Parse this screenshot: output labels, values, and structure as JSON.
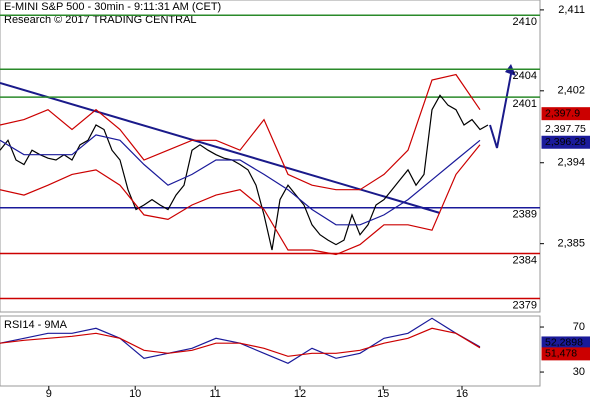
{
  "chart_data": {
    "type": "line",
    "title": "E-MINI S&P 500 - 30min - 9:11:31 AM (CET)",
    "subtitle": "Research © 2017 TRADING CENTRAL",
    "xlim": [
      0,
      67.5
    ],
    "xticks": [
      {
        "value": 6.1,
        "label": "9"
      },
      {
        "value": 16.9,
        "label": "10"
      },
      {
        "value": 26.9,
        "label": "11"
      },
      {
        "value": 37.5,
        "label": "12"
      },
      {
        "value": 47.9,
        "label": "15"
      },
      {
        "value": 57.75,
        "label": "16"
      }
    ],
    "ylim": [
      2377.4,
      2412.1
    ],
    "yticks": [
      {
        "value": 2385,
        "label": "2,385"
      },
      {
        "value": 2394,
        "label": "2,394"
      },
      {
        "value": 2402,
        "label": "2,402"
      },
      {
        "value": 2411,
        "label": "2,411"
      }
    ],
    "series": [
      {
        "color": "#000000",
        "x": [
          0,
          1,
          2,
          3,
          4,
          5,
          6,
          7,
          8,
          9,
          10,
          11,
          12,
          13,
          14,
          15,
          16,
          17,
          18,
          19,
          20,
          21,
          22,
          23,
          24,
          25,
          26,
          27,
          28,
          29,
          30,
          31,
          32,
          33,
          34,
          35,
          36,
          37,
          38,
          39,
          40,
          41,
          42,
          43,
          44,
          45,
          46,
          47,
          48,
          49,
          50,
          51,
          52,
          53,
          54,
          55,
          56,
          57,
          58,
          59,
          60,
          61
        ],
        "values": [
          2395.4,
          2396.5,
          2394.3,
          2393.8,
          2395.4,
          2394.9,
          2394.5,
          2394.3,
          2394.9,
          2394.3,
          2396.0,
          2396.5,
          2398.2,
          2397.7,
          2395.4,
          2394.3,
          2391.0,
          2388.8,
          2389.3,
          2389.9,
          2389.3,
          2388.8,
          2390.4,
          2391.5,
          2395.4,
          2396.0,
          2395.4,
          2394.9,
          2394.5,
          2394.3,
          2393.8,
          2393.2,
          2391.5,
          2388.2,
          2384.3,
          2389.9,
          2391.5,
          2390.4,
          2389.3,
          2387.1,
          2386.0,
          2385.4,
          2384.9,
          2385.4,
          2388.2,
          2386.0,
          2387.1,
          2389.3,
          2389.9,
          2391.0,
          2392.1,
          2393.2,
          2391.5,
          2392.7,
          2399.9,
          2401.5,
          2400.4,
          2399.9,
          2398.2,
          2398.8,
          2397.7,
          2398.2
        ]
      },
      {
        "color": "#cc0000",
        "x": [
          0,
          3,
          6,
          9,
          12,
          15,
          18,
          21,
          24,
          27,
          30,
          33,
          36,
          39,
          42,
          45,
          48,
          51,
          54,
          57,
          60
        ],
        "values": [
          2398.2,
          2398.8,
          2399.9,
          2397.7,
          2399.9,
          2397.7,
          2394.3,
          2395.4,
          2396.5,
          2396.5,
          2395.4,
          2398.8,
          2392.7,
          2391.5,
          2391.0,
          2391.0,
          2392.7,
          2395.4,
          2403.2,
          2403.8,
          2399.9
        ]
      },
      {
        "color": "#cc0000",
        "x": [
          0,
          3,
          6,
          9,
          12,
          15,
          18,
          21,
          24,
          27,
          30,
          33,
          36,
          39,
          42,
          45,
          48,
          51,
          54,
          57,
          60
        ],
        "values": [
          2391.0,
          2390.4,
          2391.5,
          2392.7,
          2393.2,
          2391.5,
          2388.2,
          2387.7,
          2389.3,
          2390.4,
          2391.0,
          2388.8,
          2384.3,
          2384.3,
          2383.8,
          2384.9,
          2387.1,
          2387.1,
          2386.5,
          2392.7,
          2396.0
        ]
      },
      {
        "color": "#1a1a9a",
        "x": [
          0,
          3,
          6,
          9,
          12,
          15,
          18,
          21,
          24,
          27,
          30,
          33,
          36,
          39,
          42,
          45,
          48,
          51,
          54,
          57,
          60
        ],
        "values": [
          2396.5,
          2394.9,
          2394.9,
          2394.9,
          2397.1,
          2396.5,
          2393.8,
          2391.5,
          2392.7,
          2394.3,
          2394.3,
          2392.7,
          2391.0,
          2388.8,
          2387.1,
          2387.1,
          2388.2,
          2389.9,
          2392.1,
          2394.3,
          2396.5
        ]
      }
    ],
    "levels": [
      {
        "value": 2410.4,
        "label": "2410",
        "color": "#2a8a2a"
      },
      {
        "value": 2404.4,
        "label": "2404",
        "color": "#2a8a2a"
      },
      {
        "value": 2401.3,
        "label": "2401",
        "color": "#2a8a2a"
      },
      {
        "value": 2389.0,
        "label": "2389",
        "color": "#1a1a9a"
      },
      {
        "value": 2383.9,
        "label": "2384",
        "color": "#cc0000"
      },
      {
        "value": 2378.9,
        "label": "2379",
        "color": "#cc0000"
      }
    ],
    "price_tags": [
      {
        "value": 2397.9,
        "label": "2,397.9",
        "color": "#cc0000"
      },
      {
        "value": 2397.75,
        "label": "2,397.75",
        "color": "#ffffff"
      },
      {
        "value": 2396.28,
        "label": "2,396.28",
        "color": "#1a1a9a"
      }
    ],
    "rsi": {
      "title": "RSI14 - 9MA",
      "ylim": [
        17.6,
        79.8
      ],
      "yticks": [
        30,
        70
      ],
      "series": [
        {
          "color": "#1a1a9a",
          "x": [
            0,
            3,
            6,
            9,
            12,
            15,
            18,
            21,
            24,
            27,
            30,
            33,
            36,
            39,
            42,
            45,
            48,
            51,
            54,
            57,
            60
          ],
          "values": [
            55.6,
            60,
            64.4,
            64.4,
            68.9,
            60,
            42.2,
            46.7,
            51.1,
            60,
            55.6,
            46.7,
            37.8,
            51.1,
            42.2,
            46.7,
            60,
            64.4,
            77.8,
            64.4,
            52.3
          ]
        },
        {
          "color": "#cc0000",
          "x": [
            0,
            3,
            6,
            9,
            12,
            15,
            18,
            21,
            24,
            27,
            30,
            33,
            36,
            39,
            42,
            45,
            48,
            51,
            54,
            57,
            60
          ],
          "values": [
            55.6,
            58.2,
            60,
            61.8,
            64.4,
            60,
            49.3,
            46.7,
            49.3,
            55.6,
            55.6,
            51.1,
            44,
            46.7,
            46.7,
            49.3,
            55.6,
            60,
            68.9,
            64.4,
            51.5
          ]
        }
      ],
      "tags": [
        {
          "value": 52.2898,
          "label": "52,2898",
          "color": "#1a1a9a"
        },
        {
          "value": 51.478,
          "label": "51,478",
          "color": "#cc0000"
        }
      ]
    }
  }
}
